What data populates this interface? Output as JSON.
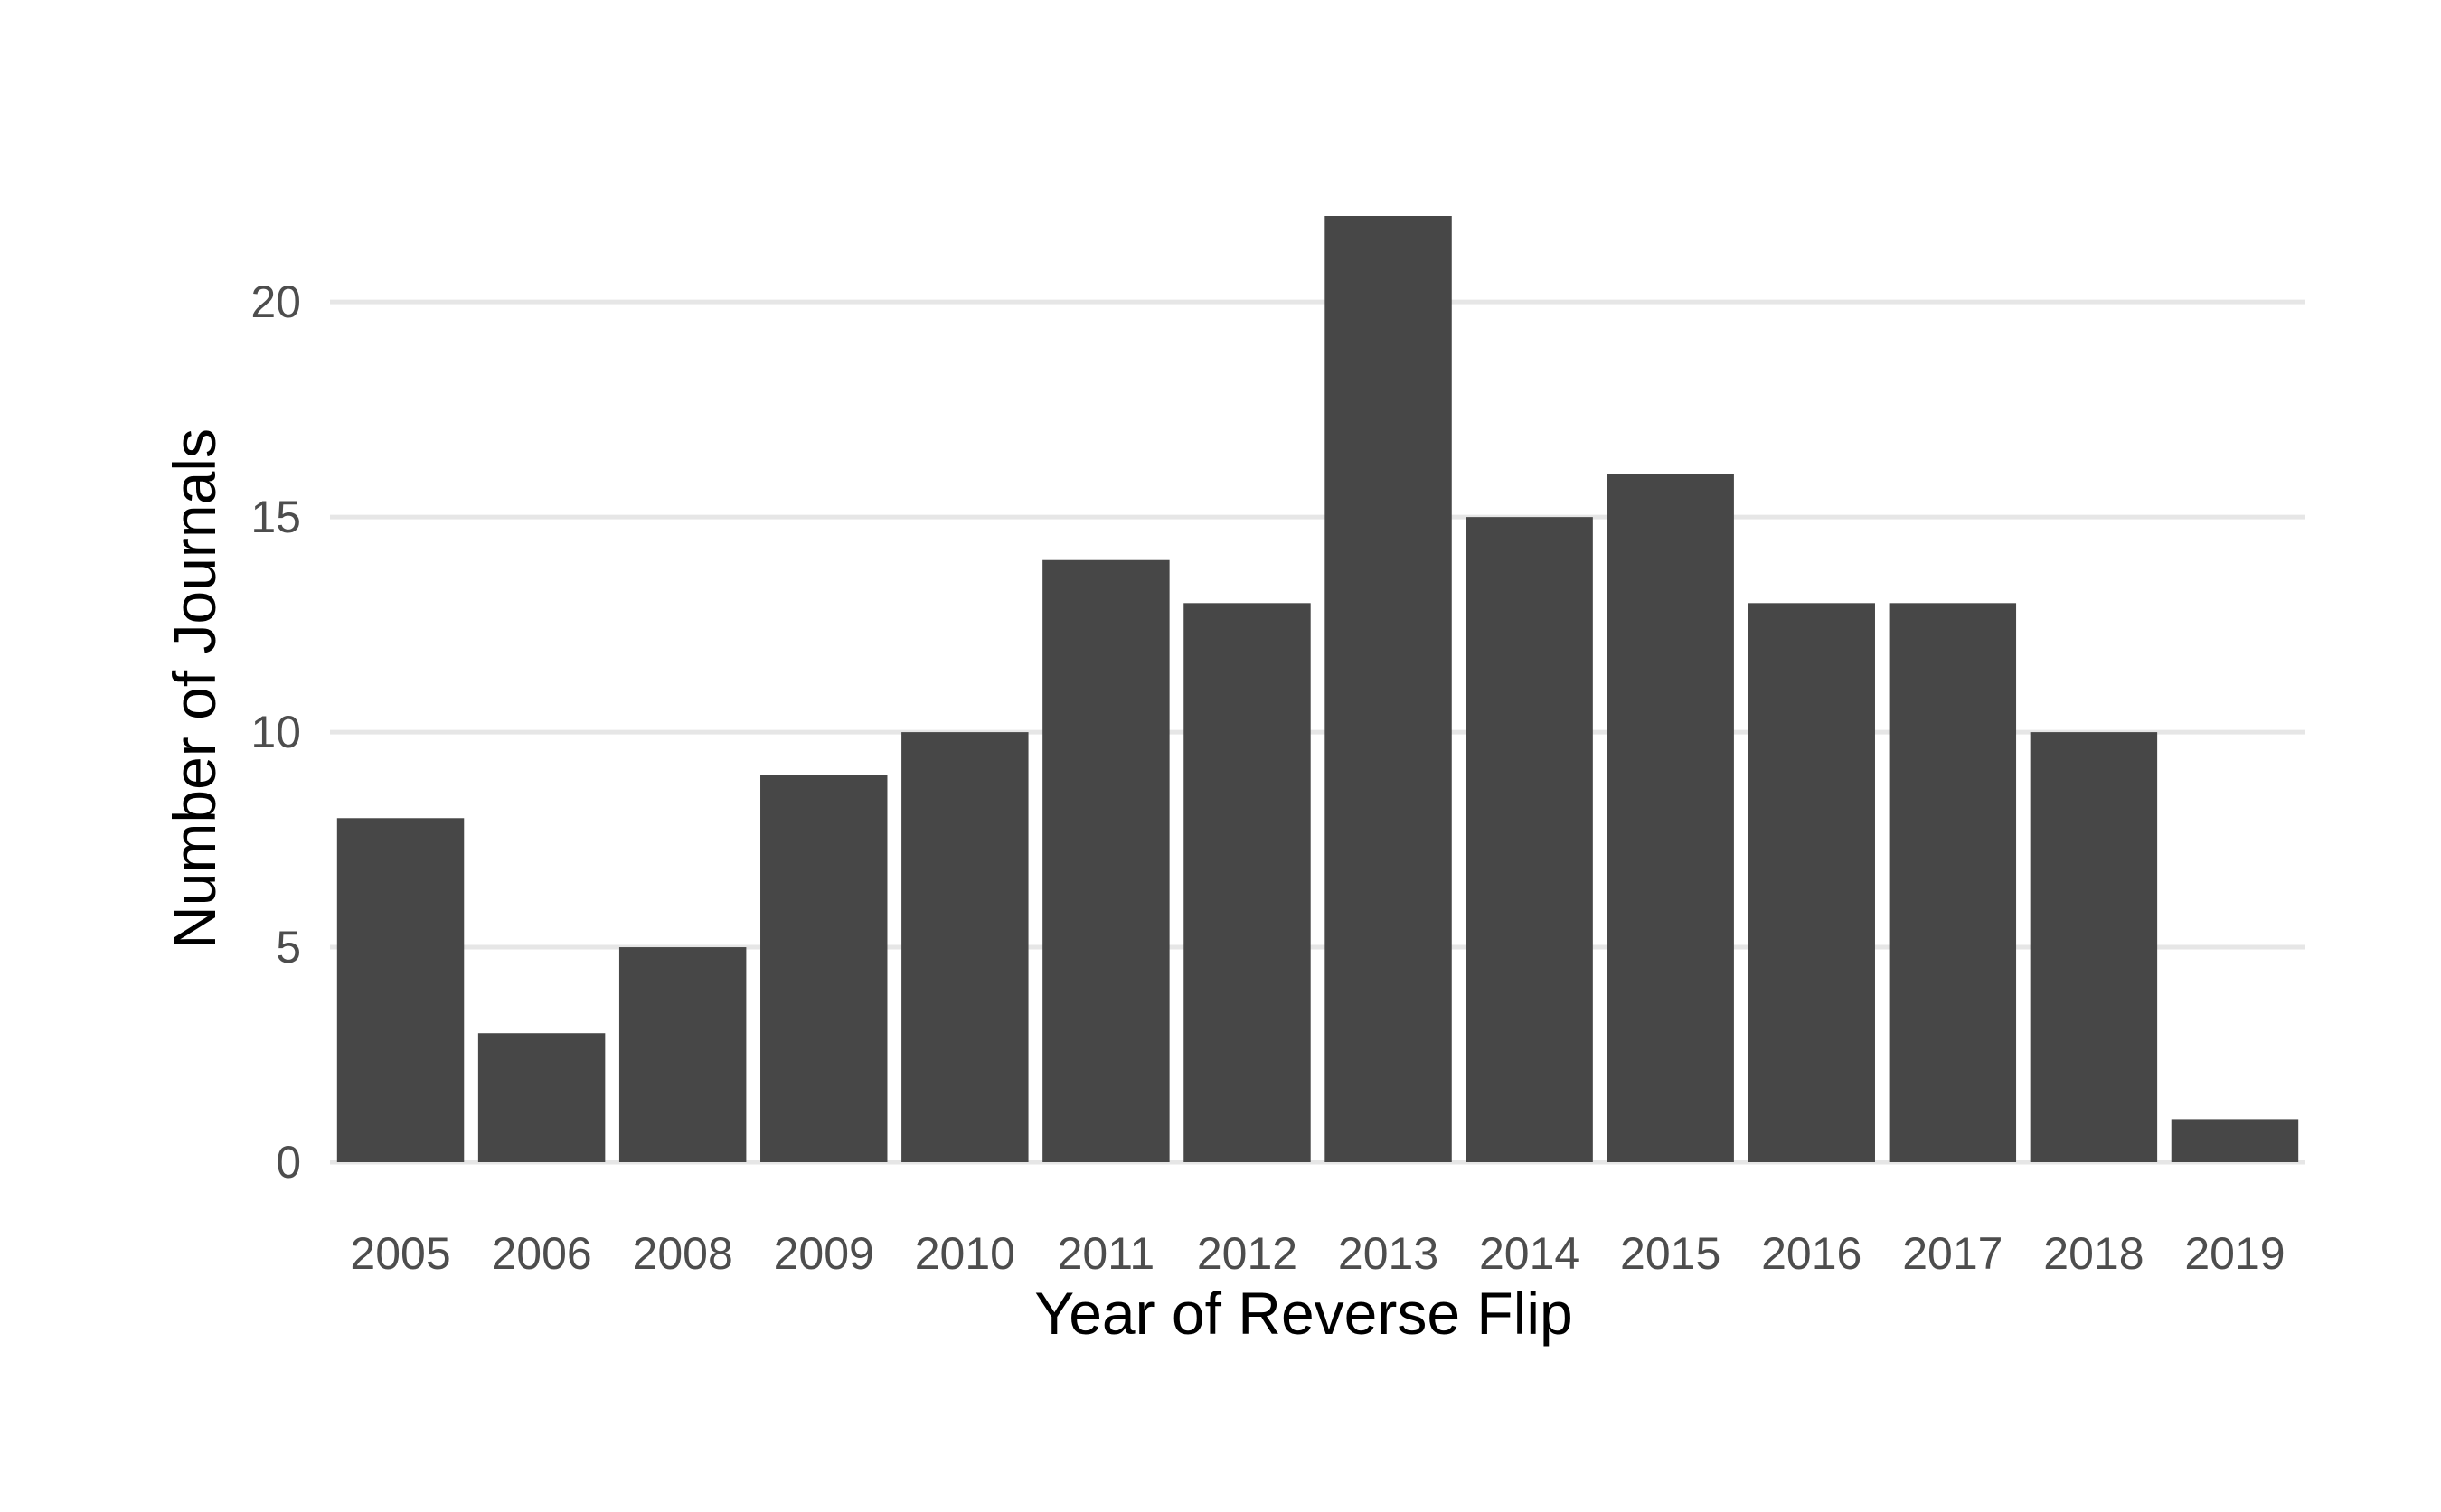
{
  "chart_data": {
    "type": "bar",
    "title": "",
    "xlabel": "Year of Reverse Flip",
    "ylabel": "Number of Journals",
    "categories": [
      "2005",
      "2006",
      "2008",
      "2009",
      "2010",
      "2011",
      "2012",
      "2013",
      "2014",
      "2015",
      "2016",
      "2017",
      "2018",
      "2019"
    ],
    "values": [
      8,
      3,
      5,
      9,
      10,
      14,
      13,
      22,
      15,
      16,
      13,
      13,
      10,
      1
    ],
    "ylim": [
      0,
      22
    ],
    "yticks": [
      "0",
      "5",
      "10",
      "15",
      "20"
    ],
    "grid": "horizontal",
    "legend": "none",
    "colors": {
      "bar": "#474747",
      "grid": "#e6e6e6",
      "background": "#ffffff"
    }
  }
}
